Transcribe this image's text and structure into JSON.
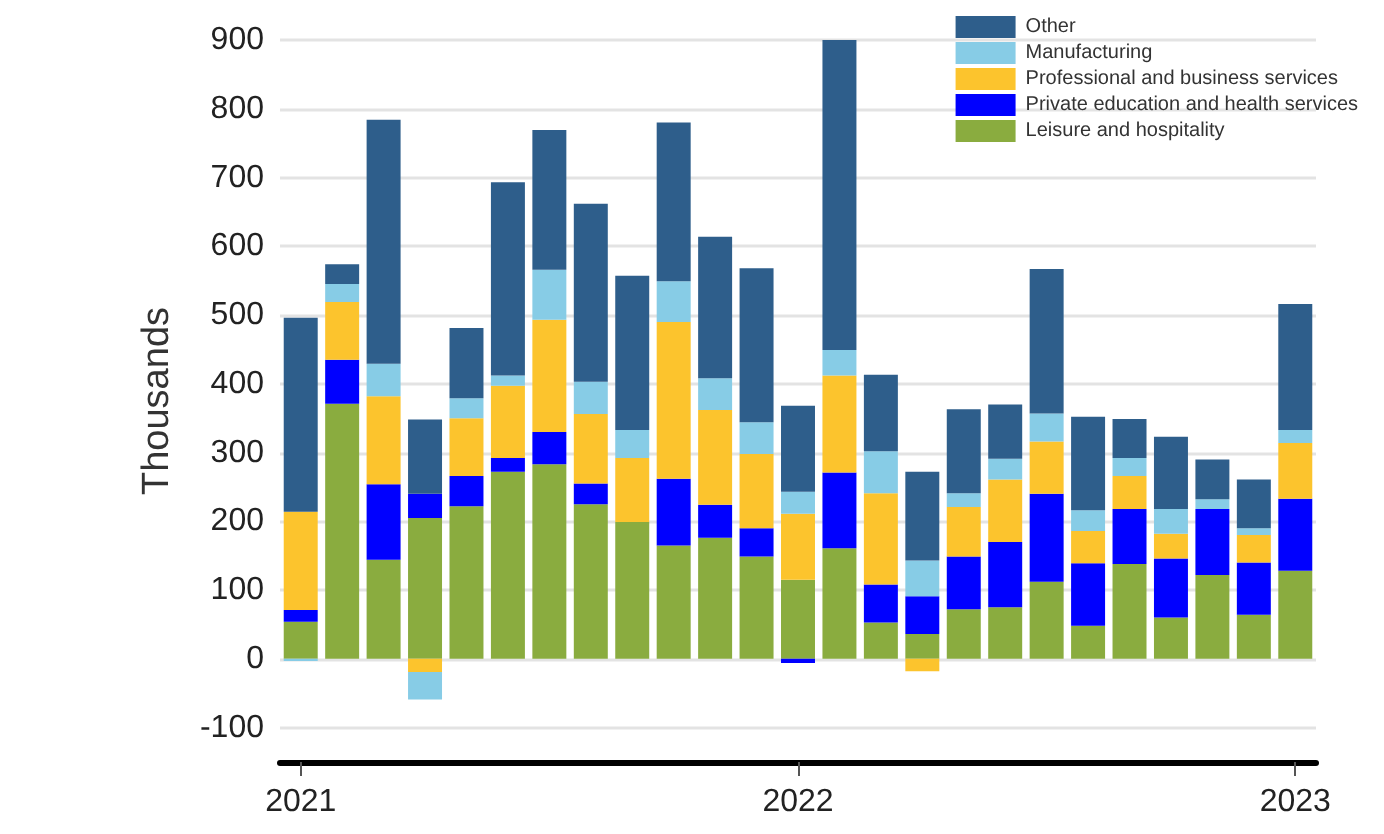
{
  "chart_data": {
    "type": "bar",
    "stacked": true,
    "ylabel": "Thousands",
    "categories": [
      "2021",
      null,
      null,
      null,
      null,
      null,
      null,
      null,
      null,
      null,
      null,
      null,
      "2022",
      null,
      null,
      null,
      null,
      null,
      null,
      null,
      null,
      null,
      null,
      null,
      "2023"
    ],
    "series": [
      {
        "name": "Leisure and hospitality",
        "color": "#8aac3f",
        "values": [
          54,
          371,
          144,
          205,
          222,
          272,
          283,
          225,
          199,
          165,
          176,
          149,
          115,
          161,
          53,
          36,
          72,
          75,
          112,
          48,
          138,
          60,
          122,
          64,
          128
        ]
      },
      {
        "name": "Private education and health services",
        "color": "#0000ff",
        "values": [
          17,
          64,
          110,
          35,
          44,
          20,
          47,
          30,
          0,
          97,
          48,
          41,
          -6,
          110,
          55,
          55,
          77,
          95,
          128,
          91,
          80,
          86,
          96,
          76,
          105
        ]
      },
      {
        "name": "Professional and business services",
        "color": "#fcc42d",
        "values": [
          143,
          84,
          128,
          -19,
          84,
          105,
          163,
          101,
          93,
          228,
          138,
          108,
          96,
          141,
          133,
          -18,
          72,
          91,
          76,
          47,
          48,
          36,
          0,
          40,
          81
        ]
      },
      {
        "name": "Manufacturing",
        "color": "#87cce6",
        "values": [
          -3,
          26,
          47,
          -40,
          29,
          15,
          73,
          47,
          41,
          59,
          46,
          46,
          32,
          37,
          61,
          52,
          20,
          30,
          41,
          30,
          26,
          36,
          14,
          10,
          19
        ]
      },
      {
        "name": "Other",
        "color": "#2e5e8b",
        "values": [
          282,
          29,
          355,
          108,
          102,
          281,
          203,
          259,
          224,
          231,
          206,
          224,
          125,
          451,
          111,
          129,
          122,
          79,
          210,
          136,
          57,
          105,
          58,
          71,
          183
        ]
      }
    ],
    "ylim": [
      -150,
      900
    ],
    "yticks": [
      -100,
      0,
      100,
      200,
      300,
      400,
      500,
      600,
      700,
      800,
      900
    ],
    "grid": "y",
    "legend": "top right"
  }
}
